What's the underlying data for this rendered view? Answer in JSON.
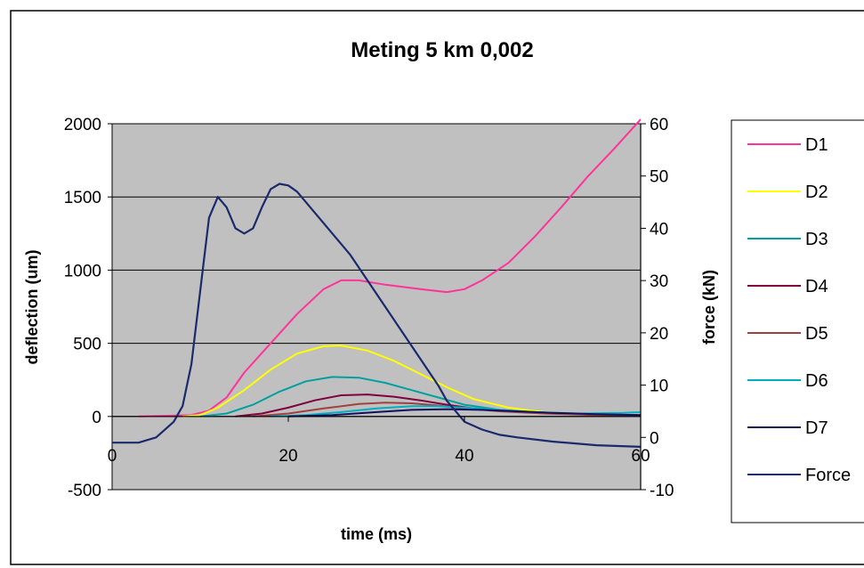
{
  "chart_data": {
    "type": "line",
    "title": "Meting 5 km 0,002",
    "xlabel": "time (ms)",
    "ylabel": "deflection (um)",
    "y2label": "force (kN)",
    "xlim": [
      0,
      60
    ],
    "ylim": [
      -500,
      2000
    ],
    "y2lim": [
      -10,
      60
    ],
    "xticks": [
      "0",
      "20",
      "40",
      "60"
    ],
    "yticks": [
      "-500",
      "0",
      "500",
      "1000",
      "1500",
      "2000"
    ],
    "y2ticks": [
      "-10",
      "0",
      "10",
      "20",
      "30",
      "40",
      "50",
      "60"
    ],
    "grid": "horizontal",
    "legend_position": "right",
    "plot_bg": "#c0c0c0",
    "series": [
      {
        "name": "D1",
        "axis": "left",
        "color": "#ff3399",
        "points": [
          [
            3,
            0
          ],
          [
            9,
            10
          ],
          [
            11,
            40
          ],
          [
            13,
            130
          ],
          [
            15,
            300
          ],
          [
            18,
            500
          ],
          [
            21,
            700
          ],
          [
            24,
            870
          ],
          [
            26,
            930
          ],
          [
            28,
            930
          ],
          [
            31,
            900
          ],
          [
            35,
            870
          ],
          [
            38,
            850
          ],
          [
            40,
            870
          ],
          [
            42,
            930
          ],
          [
            45,
            1050
          ],
          [
            48,
            1230
          ],
          [
            51,
            1430
          ],
          [
            54,
            1640
          ],
          [
            57,
            1830
          ],
          [
            60,
            2030
          ]
        ]
      },
      {
        "name": "D2",
        "axis": "left",
        "color": "#ffff00",
        "points": [
          [
            8,
            0
          ],
          [
            10,
            10
          ],
          [
            12,
            60
          ],
          [
            15,
            180
          ],
          [
            18,
            320
          ],
          [
            21,
            430
          ],
          [
            24,
            480
          ],
          [
            26,
            485
          ],
          [
            29,
            450
          ],
          [
            32,
            380
          ],
          [
            35,
            290
          ],
          [
            38,
            200
          ],
          [
            41,
            120
          ],
          [
            45,
            60
          ],
          [
            49,
            30
          ],
          [
            54,
            15
          ],
          [
            60,
            10
          ]
        ]
      },
      {
        "name": "D3",
        "axis": "left",
        "color": "#00a0a0",
        "points": [
          [
            10,
            0
          ],
          [
            13,
            20
          ],
          [
            16,
            80
          ],
          [
            19,
            170
          ],
          [
            22,
            240
          ],
          [
            25,
            270
          ],
          [
            28,
            265
          ],
          [
            31,
            230
          ],
          [
            34,
            180
          ],
          [
            37,
            130
          ],
          [
            40,
            80
          ],
          [
            44,
            45
          ],
          [
            48,
            25
          ],
          [
            54,
            15
          ],
          [
            60,
            10
          ]
        ]
      },
      {
        "name": "D4",
        "axis": "left",
        "color": "#800040",
        "points": [
          [
            14,
            0
          ],
          [
            17,
            20
          ],
          [
            20,
            60
          ],
          [
            23,
            110
          ],
          [
            26,
            145
          ],
          [
            29,
            150
          ],
          [
            32,
            135
          ],
          [
            35,
            110
          ],
          [
            38,
            80
          ],
          [
            41,
            55
          ],
          [
            45,
            35
          ],
          [
            50,
            20
          ],
          [
            56,
            10
          ],
          [
            60,
            10
          ]
        ]
      },
      {
        "name": "D5",
        "axis": "left",
        "color": "#a04040",
        "points": [
          [
            16,
            0
          ],
          [
            20,
            20
          ],
          [
            24,
            55
          ],
          [
            28,
            85
          ],
          [
            31,
            95
          ],
          [
            34,
            90
          ],
          [
            37,
            75
          ],
          [
            40,
            55
          ],
          [
            44,
            35
          ],
          [
            49,
            20
          ],
          [
            55,
            10
          ],
          [
            60,
            10
          ]
        ]
      },
      {
        "name": "D6",
        "axis": "left",
        "color": "#00b0c0",
        "points": [
          [
            18,
            0
          ],
          [
            22,
            10
          ],
          [
            26,
            30
          ],
          [
            30,
            55
          ],
          [
            34,
            70
          ],
          [
            37,
            70
          ],
          [
            40,
            60
          ],
          [
            44,
            45
          ],
          [
            48,
            30
          ],
          [
            53,
            20
          ],
          [
            58,
            25
          ],
          [
            60,
            30
          ]
        ]
      },
      {
        "name": "D7",
        "axis": "left",
        "color": "#101060",
        "points": [
          [
            20,
            0
          ],
          [
            25,
            10
          ],
          [
            30,
            30
          ],
          [
            34,
            45
          ],
          [
            38,
            50
          ],
          [
            42,
            45
          ],
          [
            46,
            35
          ],
          [
            50,
            25
          ],
          [
            55,
            15
          ],
          [
            60,
            10
          ]
        ]
      },
      {
        "name": "Force",
        "axis": "right",
        "color": "#1a2a6c",
        "points": [
          [
            0,
            -1
          ],
          [
            3,
            -1
          ],
          [
            5,
            0
          ],
          [
            7,
            3
          ],
          [
            8,
            6
          ],
          [
            9,
            14
          ],
          [
            10,
            28
          ],
          [
            11,
            42
          ],
          [
            12,
            46
          ],
          [
            13,
            44
          ],
          [
            14,
            40
          ],
          [
            15,
            39
          ],
          [
            16,
            40
          ],
          [
            17,
            44
          ],
          [
            18,
            47.5
          ],
          [
            19,
            48.5
          ],
          [
            20,
            48.2
          ],
          [
            21,
            47
          ],
          [
            23,
            43
          ],
          [
            25,
            39
          ],
          [
            27,
            35
          ],
          [
            29,
            30
          ],
          [
            31,
            25
          ],
          [
            33,
            20
          ],
          [
            35,
            15
          ],
          [
            37,
            10
          ],
          [
            38,
            7
          ],
          [
            40,
            3
          ],
          [
            42,
            1.5
          ],
          [
            44,
            0.5
          ],
          [
            46,
            0
          ],
          [
            50,
            -0.8
          ],
          [
            55,
            -1.5
          ],
          [
            60,
            -1.8
          ]
        ]
      }
    ]
  }
}
